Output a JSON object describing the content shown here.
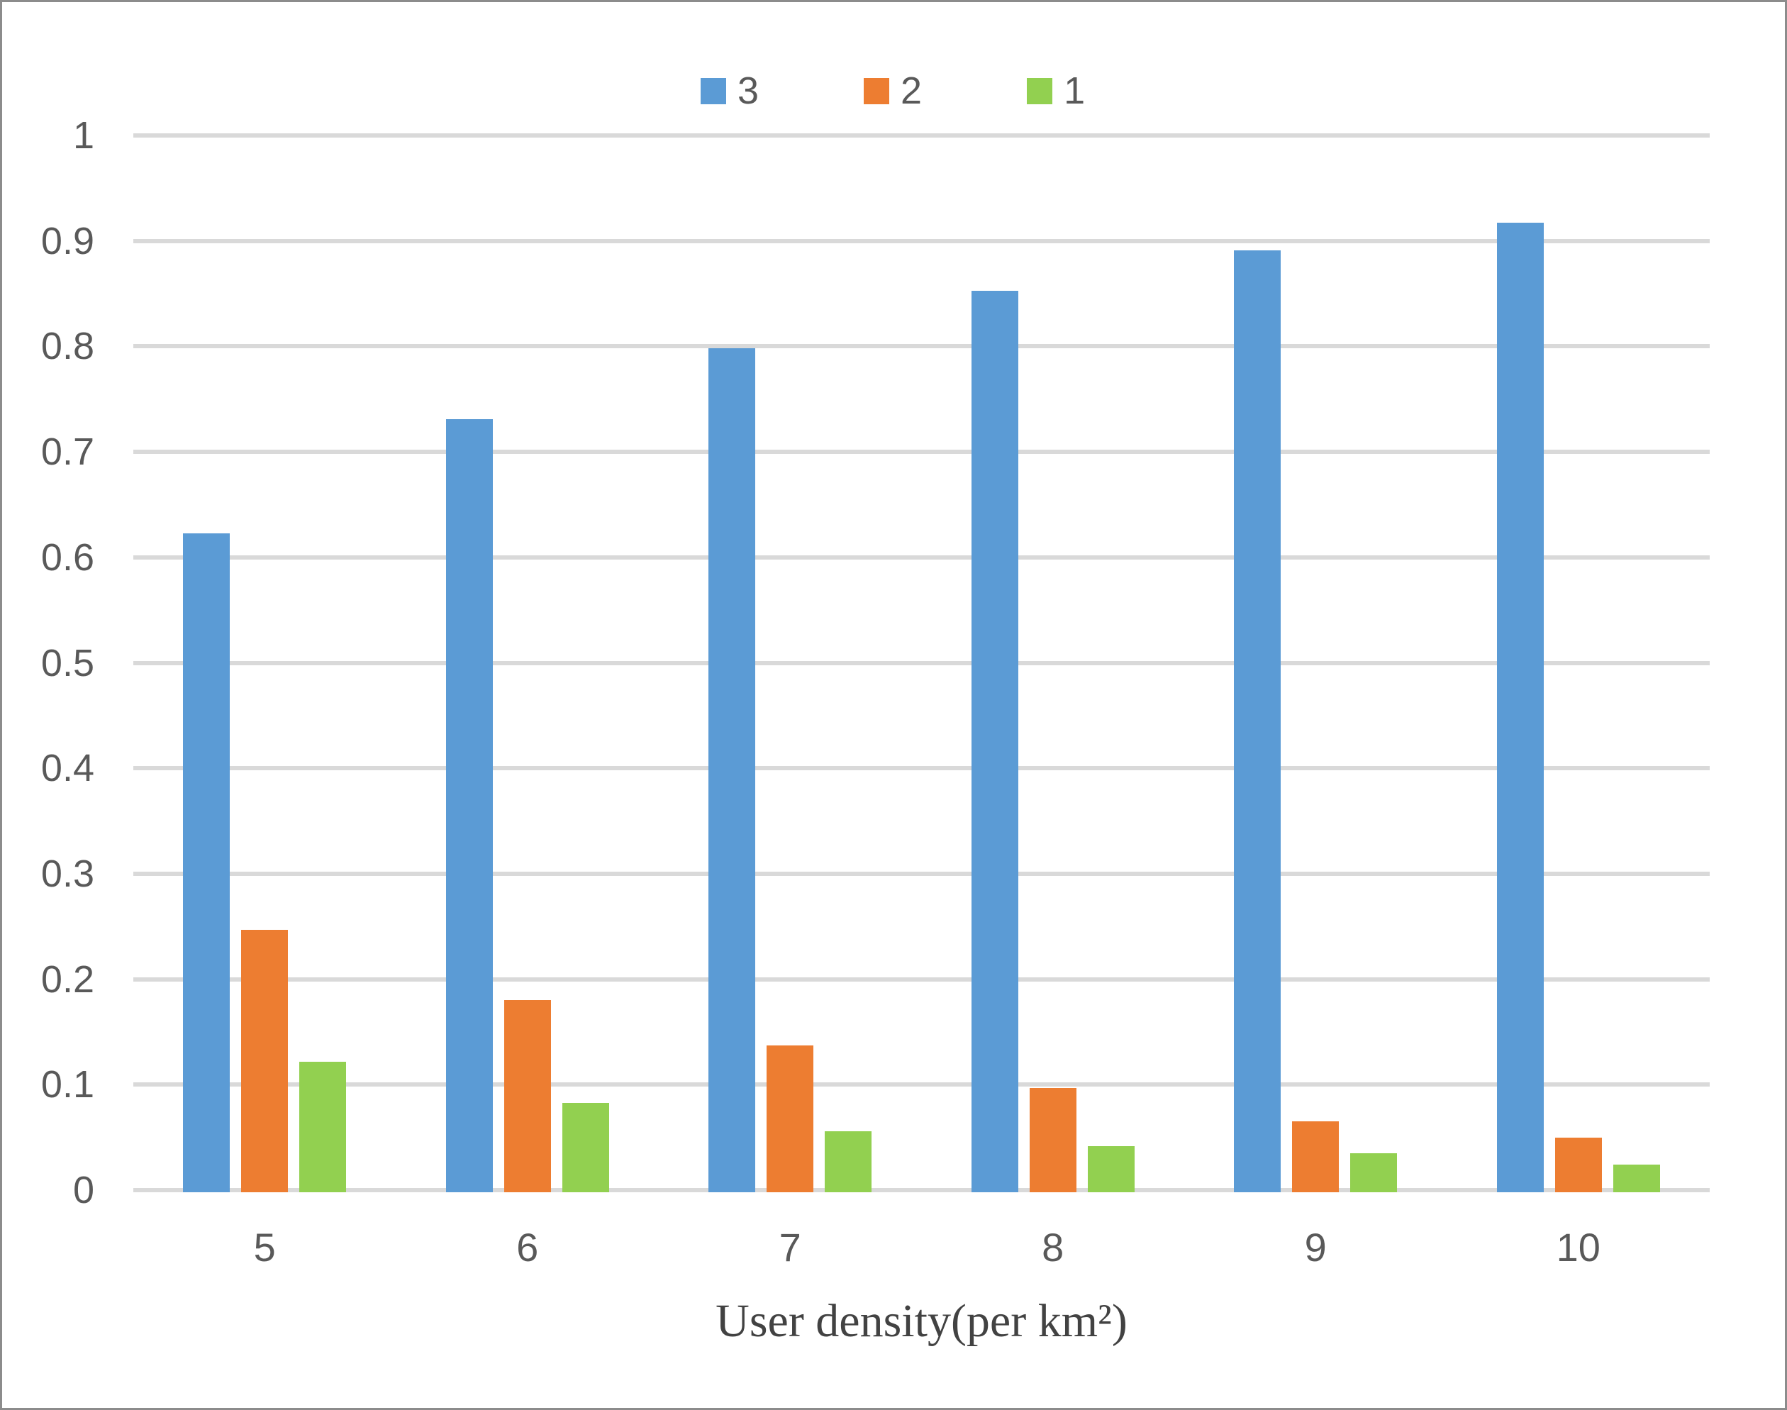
{
  "chart_data": {
    "type": "bar",
    "categories": [
      "5",
      "6",
      "7",
      "8",
      "9",
      "10"
    ],
    "series": [
      {
        "name": "3",
        "color": "#5B9BD5",
        "values": [
          0.625,
          0.733,
          0.8,
          0.855,
          0.893,
          0.919
        ]
      },
      {
        "name": "2",
        "color": "#ED7D31",
        "values": [
          0.249,
          0.182,
          0.139,
          0.099,
          0.067,
          0.052
        ]
      },
      {
        "name": "1",
        "color": "#92D050",
        "values": [
          0.124,
          0.085,
          0.058,
          0.044,
          0.037,
          0.026
        ]
      }
    ],
    "title": "",
    "xlabel": "User density(per km²)",
    "ylabel": "",
    "ylim": [
      0,
      1
    ],
    "ytick_step": 0.1,
    "yticks": [
      "1",
      "0.9",
      "0.8",
      "0.7",
      "0.6",
      "0.5",
      "0.4",
      "0.3",
      "0.2",
      "0.1",
      "0"
    ],
    "grid": true,
    "legend_position": "top-center",
    "legend_entries": [
      "3",
      "2",
      "1"
    ]
  },
  "colors": {
    "background": "#FFFFFF",
    "gridline": "#D9D9D9",
    "axis_text": "#595959",
    "axis_title_text": "#424242",
    "frame_border": "#8C8C8C"
  }
}
